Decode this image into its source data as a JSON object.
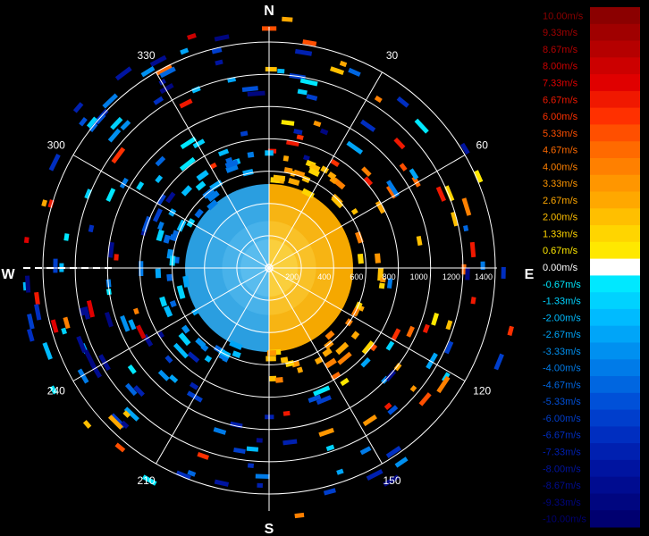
{
  "chart_data": {
    "type": "heatmap",
    "subtype": "polar-radial-velocity",
    "cardinals": {
      "north": "N",
      "east": "E",
      "south": "S",
      "west": "W"
    },
    "azimuth_labels": [
      "30",
      "60",
      "120",
      "150",
      "210",
      "240",
      "300",
      "330"
    ],
    "azimuth_degrees": [
      30,
      60,
      120,
      150,
      210,
      240,
      300,
      330
    ],
    "range_labels": [
      "200",
      "400",
      "600",
      "800",
      "1000",
      "1200",
      "1400"
    ],
    "range_values": [
      200,
      400,
      600,
      800,
      1000,
      1200,
      1400
    ],
    "range_max": 1400,
    "grid": true,
    "legend_position": "right",
    "legend": {
      "unit": "m/s",
      "labels": [
        "10.00m/s",
        "9.33m/s",
        "8.67m/s",
        "8.00m/s",
        "7.33m/s",
        "6.67m/s",
        "6.00m/s",
        "5.33m/s",
        "4.67m/s",
        "4.00m/s",
        "3.33m/s",
        "2.67m/s",
        "2.00m/s",
        "1.33m/s",
        "0.67m/s",
        "0.00m/s",
        "-0.67m/s",
        "-1.33m/s",
        "-2.00m/s",
        "-2.67m/s",
        "-3.33m/s",
        "-4.00m/s",
        "-4.67m/s",
        "-5.33m/s",
        "-6.00m/s",
        "-6.67m/s",
        "-7.33m/s",
        "-8.00m/s",
        "-8.67m/s",
        "-9.33m/s",
        "-10.00m/s"
      ],
      "values": [
        10.0,
        9.33,
        8.67,
        8.0,
        7.33,
        6.67,
        6.0,
        5.33,
        4.67,
        4.0,
        3.33,
        2.67,
        2.0,
        1.33,
        0.67,
        0.0,
        -0.67,
        -1.33,
        -2.0,
        -2.67,
        -3.33,
        -4.0,
        -4.67,
        -5.33,
        -6.0,
        -6.67,
        -7.33,
        -8.0,
        -8.67,
        -9.33,
        -10.0
      ],
      "colors": [
        "#8b0000",
        "#a00000",
        "#b50000",
        "#cc0000",
        "#e00000",
        "#f01800",
        "#ff3000",
        "#ff4f00",
        "#ff6a00",
        "#ff8000",
        "#ff9600",
        "#ffa800",
        "#ffbf00",
        "#ffd500",
        "#ffe800",
        "#ffffff",
        "#00e8ff",
        "#00d2ff",
        "#00bbff",
        "#00a5f8",
        "#0090f0",
        "#007be8",
        "#0066e0",
        "#0050d8",
        "#003ecc",
        "#002ec0",
        "#0020b0",
        "#0014a0",
        "#000c90",
        "#000680",
        "#000070"
      ]
    },
    "near_field": {
      "range_max": 520,
      "east_half_value": 2.0,
      "west_half_value": -3.0
    }
  }
}
